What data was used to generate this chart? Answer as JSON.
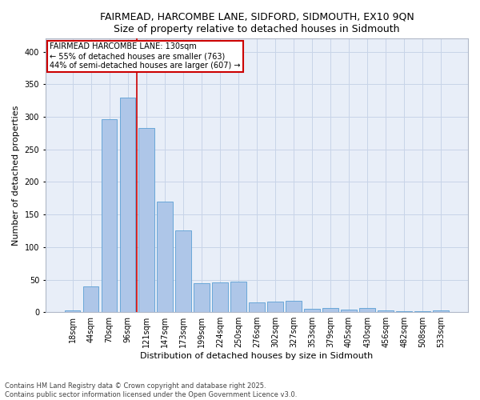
{
  "title_line1": "FAIRMEAD, HARCOMBE LANE, SIDFORD, SIDMOUTH, EX10 9QN",
  "title_line2": "Size of property relative to detached houses in Sidmouth",
  "xlabel": "Distribution of detached houses by size in Sidmouth",
  "ylabel": "Number of detached properties",
  "categories": [
    "18sqm",
    "44sqm",
    "70sqm",
    "96sqm",
    "121sqm",
    "147sqm",
    "173sqm",
    "199sqm",
    "224sqm",
    "250sqm",
    "276sqm",
    "302sqm",
    "327sqm",
    "353sqm",
    "379sqm",
    "405sqm",
    "430sqm",
    "456sqm",
    "482sqm",
    "508sqm",
    "533sqm"
  ],
  "values": [
    3,
    39,
    296,
    330,
    283,
    170,
    125,
    44,
    46,
    47,
    15,
    16,
    17,
    5,
    6,
    4,
    6,
    3,
    1,
    1,
    3
  ],
  "bar_color": "#aec6e8",
  "bar_edge_color": "#5a9fd4",
  "vline_x": 3.5,
  "marker_label_line1": "FAIRMEAD HARCOMBE LANE: 130sqm",
  "marker_label_line2": "← 55% of detached houses are smaller (763)",
  "marker_label_line3": "44% of semi-detached houses are larger (607) →",
  "vline_color": "#cc0000",
  "annotation_box_edge_color": "#cc0000",
  "ylim": [
    0,
    420
  ],
  "yticks": [
    0,
    50,
    100,
    150,
    200,
    250,
    300,
    350,
    400
  ],
  "grid_color": "#c8d4e8",
  "background_color": "#e8eef8",
  "footnote": "Contains HM Land Registry data © Crown copyright and database right 2025.\nContains public sector information licensed under the Open Government Licence v3.0.",
  "title_fontsize": 9,
  "axis_fontsize": 8,
  "tick_fontsize": 7,
  "annot_fontsize": 7
}
